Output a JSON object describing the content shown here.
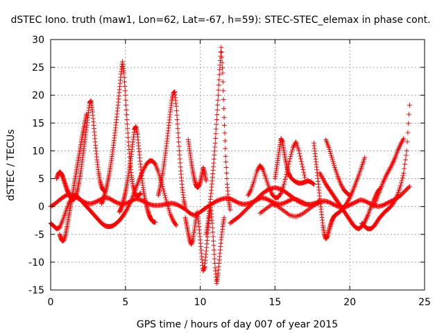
{
  "chart_data": {
    "type": "scatter",
    "title": "dSTEC Iono. truth (maw1, Lon=62, Lat=-67, h=59): STEC-STEC_elemax in phase cont.",
    "xlabel": "GPS time / hours of day 007 of year 2015",
    "ylabel": "dSTEC  / TECUs",
    "xlim": [
      0,
      25
    ],
    "ylim": [
      -15,
      30
    ],
    "x_ticks": [
      "0",
      "5",
      "10",
      "15",
      "20",
      "25"
    ],
    "y_ticks": [
      "-15",
      "-10",
      "-5",
      "0",
      "5",
      "10",
      "15",
      "20",
      "25",
      "30"
    ],
    "grid": true,
    "legend": "none",
    "marker": "plus",
    "color": "#ff0000",
    "series": [
      {
        "x": [
          0.0,
          0.3,
          0.6,
          0.9,
          1.2,
          1.5,
          1.8,
          2.1,
          2.4,
          2.7,
          3.0,
          3.3,
          3.6,
          3.9,
          4.2,
          4.5,
          4.8,
          5.1,
          5.4,
          5.7,
          6.0,
          6.3,
          6.6,
          6.9,
          7.2,
          7.5,
          7.8,
          8.1,
          8.4,
          8.7,
          9.0,
          9.3,
          9.6,
          9.9,
          10.2,
          10.5,
          10.8,
          11.1,
          11.4,
          11.7,
          12.0,
          12.3,
          12.6,
          12.9,
          13.2,
          13.5,
          13.8,
          14.1,
          14.4,
          14.7,
          15.0,
          15.3,
          15.6,
          15.9,
          16.2,
          16.5,
          16.8,
          17.1,
          17.4,
          17.7,
          18.0,
          18.3,
          18.6,
          18.9,
          19.2,
          19.5,
          19.8,
          20.1,
          20.4,
          20.7,
          21.0,
          21.3,
          21.6,
          21.9,
          22.2,
          22.5,
          22.8,
          23.1,
          23.4,
          23.7,
          24.0
        ],
        "y": [
          0.0,
          0.5,
          1.2,
          1.8,
          2.2,
          2.0,
          1.5,
          1.0,
          0.6,
          0.5,
          0.8,
          1.2,
          1.6,
          1.5,
          1.0,
          0.6,
          0.4,
          0.6,
          1.0,
          1.4,
          1.2,
          0.8,
          0.4,
          0.2,
          0.2,
          0.3,
          0.5,
          0.6,
          0.4,
          0.0,
          -0.5,
          -1.2,
          -1.6,
          -1.2,
          -0.6,
          0.0,
          0.5,
          1.0,
          1.3,
          1.5,
          1.4,
          1.0,
          0.6,
          0.4,
          0.5,
          0.8,
          1.2,
          1.6,
          1.4,
          1.0,
          0.6,
          0.4,
          0.6,
          1.0,
          1.4,
          1.2,
          0.8,
          0.4,
          0.2,
          0.4,
          0.8,
          1.0,
          0.8,
          0.4,
          0.0,
          -0.2,
          0.0,
          0.4,
          0.8,
          1.2,
          1.0,
          0.6,
          0.2,
          0.0,
          0.2,
          0.6,
          1.0,
          1.4,
          2.0,
          2.8,
          3.6
        ]
      },
      {
        "x": [
          0.0,
          0.2,
          0.4,
          0.6,
          0.8,
          1.0,
          1.2,
          1.4,
          1.6,
          1.8,
          2.0,
          2.2,
          2.4,
          2.6,
          2.8,
          3.0,
          3.2,
          3.4,
          3.6,
          3.8,
          4.0,
          4.2,
          4.4,
          4.6,
          4.8,
          5.0,
          5.2,
          5.4,
          5.6,
          5.8,
          6.0,
          6.2,
          6.4,
          6.6,
          6.8,
          7.0,
          7.2,
          7.4,
          7.6,
          7.8,
          8.0,
          8.2,
          8.4
        ],
        "y": [
          -3.0,
          -3.5,
          -4.0,
          -3.8,
          -2.5,
          -1.0,
          0.5,
          1.5,
          2.0,
          1.8,
          1.2,
          0.6,
          0.0,
          -0.6,
          -1.2,
          -1.8,
          -2.4,
          -3.0,
          -3.4,
          -3.6,
          -3.6,
          -3.4,
          -3.0,
          -2.5,
          -1.8,
          -1.0,
          0.0,
          1.2,
          2.6,
          4.0,
          5.4,
          6.6,
          7.6,
          8.2,
          8.2,
          7.6,
          6.2,
          4.4,
          2.4,
          0.4,
          -1.4,
          -2.6,
          -3.4
        ]
      },
      {
        "x": [
          0.4,
          0.5,
          0.6,
          0.7,
          0.8,
          0.9,
          1.0,
          1.1,
          1.2,
          1.3,
          1.4,
          1.5,
          1.6,
          1.7,
          1.8,
          1.9,
          2.0,
          2.1,
          2.2,
          2.3,
          2.4,
          2.5,
          2.6,
          2.7,
          2.8,
          2.9,
          3.0,
          3.1,
          3.2,
          3.3,
          3.4,
          3.5,
          3.6
        ],
        "y": [
          5.0,
          5.8,
          6.2,
          6.0,
          5.4,
          4.6,
          3.8,
          3.0,
          2.4,
          1.8,
          1.4,
          1.2,
          1.4,
          2.0,
          3.0,
          4.4,
          6.0,
          8.0,
          10.0,
          12.0,
          14.2,
          16.4,
          18.6,
          19.0,
          17.0,
          14.0,
          11.0,
          8.4,
          6.2,
          4.6,
          3.6,
          3.0,
          2.8
        ]
      },
      {
        "x": [
          0.6,
          0.7,
          0.8,
          0.9,
          1.0,
          1.1,
          1.2,
          1.3,
          1.4,
          1.5,
          1.6,
          1.7,
          1.8,
          1.9,
          2.0,
          2.1,
          2.2,
          2.3,
          2.4
        ],
        "y": [
          -5.0,
          -5.8,
          -6.2,
          -6.0,
          -5.0,
          -3.6,
          -2.0,
          -0.4,
          1.2,
          2.8,
          4.4,
          6.0,
          7.6,
          9.2,
          10.8,
          12.4,
          13.8,
          15.2,
          16.6
        ]
      },
      {
        "x": [
          3.4,
          3.5,
          3.6,
          3.7,
          3.8,
          3.9,
          4.0,
          4.1,
          4.2,
          4.3,
          4.4,
          4.5,
          4.6,
          4.7,
          4.8,
          4.9,
          5.0,
          5.1,
          5.2,
          5.3,
          5.4,
          5.5,
          5.6,
          5.7,
          5.8,
          5.9,
          6.0
        ],
        "y": [
          0.5,
          1.2,
          2.0,
          3.0,
          4.2,
          5.6,
          7.2,
          9.0,
          11.0,
          13.2,
          15.6,
          18.2,
          21.0,
          23.8,
          26.0,
          24.0,
          20.0,
          15.6,
          11.6,
          8.2,
          5.6,
          3.8,
          2.6,
          2.0,
          1.8,
          2.0,
          2.4
        ]
      },
      {
        "x": [
          4.6,
          4.7,
          4.8,
          4.9,
          5.0,
          5.1,
          5.2,
          5.3,
          5.4,
          5.5,
          5.6,
          5.7,
          5.8,
          5.9,
          6.0,
          6.1,
          6.2,
          6.3,
          6.4,
          6.5,
          6.6,
          6.7,
          6.8,
          6.9,
          7.0
        ],
        "y": [
          -1.0,
          -0.4,
          0.4,
          1.4,
          2.6,
          4.0,
          5.6,
          7.4,
          9.4,
          11.6,
          13.8,
          14.4,
          13.0,
          10.4,
          7.6,
          5.0,
          3.0,
          1.4,
          0.2,
          -0.8,
          -1.6,
          -2.2,
          -2.6,
          -2.8,
          -2.8
        ]
      },
      {
        "x": [
          7.2,
          7.3,
          7.4,
          7.5,
          7.6,
          7.7,
          7.8,
          7.9,
          8.0,
          8.1,
          8.2,
          8.3,
          8.4,
          8.5,
          8.6,
          8.7,
          8.8,
          8.9,
          9.0
        ],
        "y": [
          2.0,
          3.2,
          4.6,
          6.2,
          8.0,
          10.0,
          12.2,
          14.6,
          17.0,
          19.0,
          20.4,
          20.6,
          18.0,
          14.0,
          10.0,
          6.4,
          3.4,
          1.2,
          -0.2
        ]
      },
      {
        "x": [
          9.0,
          9.1,
          9.2,
          9.3,
          9.4,
          9.5,
          9.6,
          9.7,
          9.8,
          9.9,
          10.0,
          10.1,
          10.2,
          10.3,
          10.4,
          10.5,
          10.6,
          10.7,
          10.8,
          10.9,
          11.0,
          11.1,
          11.2,
          11.3,
          11.4,
          11.5,
          11.6
        ],
        "y": [
          -2.0,
          -3.4,
          -4.8,
          -6.0,
          -6.8,
          -6.0,
          -4.4,
          -2.6,
          -1.0,
          -3.0,
          -6.0,
          -9.0,
          -11.6,
          -10.8,
          -8.0,
          -4.8,
          -2.0,
          -0.2,
          -3.0,
          -7.0,
          -11.0,
          -13.8,
          -12.0,
          -9.0,
          -6.0,
          -3.6,
          -2.0
        ]
      },
      {
        "x": [
          10.4,
          10.5,
          10.6,
          10.7,
          10.8,
          10.9,
          11.0,
          11.1,
          11.2,
          11.3,
          11.4,
          11.5,
          11.6,
          11.7,
          11.8,
          11.9,
          12.0
        ],
        "y": [
          -5.0,
          -3.0,
          -0.8,
          1.8,
          4.6,
          7.8,
          11.4,
          15.6,
          20.0,
          24.6,
          28.6,
          24.0,
          16.0,
          9.0,
          4.0,
          1.0,
          -0.6
        ]
      },
      {
        "x": [
          9.2,
          9.3,
          9.4,
          9.5,
          9.6,
          9.7,
          9.8,
          9.9,
          10.0,
          10.1,
          10.2,
          10.3,
          10.4
        ],
        "y": [
          12.0,
          10.0,
          8.0,
          6.4,
          5.0,
          4.0,
          3.4,
          3.6,
          4.4,
          5.6,
          7.0,
          6.0,
          4.6
        ]
      },
      {
        "x": [
          12.0,
          12.3,
          12.6,
          12.9,
          13.2,
          13.5,
          13.8,
          14.1,
          14.4,
          14.7,
          15.0,
          15.3,
          15.6,
          15.9,
          16.2,
          16.5,
          16.8,
          17.1,
          17.4,
          17.7,
          18.0
        ],
        "y": [
          -3.0,
          -2.4,
          -1.8,
          -1.0,
          -0.2,
          0.6,
          1.4,
          2.2,
          2.8,
          3.2,
          3.4,
          3.2,
          2.8,
          2.2,
          1.6,
          1.0,
          0.6,
          0.4,
          0.4,
          0.6,
          1.0
        ]
      },
      {
        "x": [
          13.2,
          13.4,
          13.6,
          13.8,
          14.0,
          14.2,
          14.4,
          14.6,
          14.8,
          15.0,
          15.2,
          15.4,
          15.6,
          15.8,
          16.0,
          16.2,
          16.4,
          16.6,
          16.8,
          17.0
        ],
        "y": [
          2.0,
          3.0,
          4.6,
          6.4,
          7.4,
          6.6,
          5.0,
          3.4,
          2.2,
          1.6,
          1.6,
          2.4,
          4.0,
          6.2,
          8.6,
          10.6,
          11.6,
          10.0,
          7.6,
          5.2
        ]
      },
      {
        "x": [
          15.0,
          15.1,
          15.2,
          15.3,
          15.4,
          15.5,
          15.6,
          15.7,
          15.8,
          15.9,
          16.0,
          16.2,
          16.4,
          16.6,
          16.8,
          17.0,
          17.2,
          17.4,
          17.6
        ],
        "y": [
          5.0,
          6.8,
          8.6,
          10.4,
          12.2,
          11.6,
          10.0,
          8.4,
          7.0,
          6.0,
          5.4,
          4.8,
          4.4,
          4.2,
          4.2,
          4.4,
          4.6,
          4.4,
          4.0
        ]
      },
      {
        "x": [
          14.0,
          14.4,
          14.8,
          15.2,
          15.6,
          16.0,
          16.4,
          16.8,
          17.2,
          17.6,
          18.0
        ],
        "y": [
          -1.2,
          -0.4,
          0.4,
          0.0,
          -0.8,
          -1.6,
          -1.8,
          -1.4,
          -0.6,
          0.2,
          0.8
        ]
      },
      {
        "x": [
          17.6,
          17.7,
          17.8,
          17.9,
          18.0,
          18.1,
          18.2,
          18.3,
          18.4,
          18.5,
          18.6,
          18.7,
          18.8,
          18.9,
          19.0,
          19.2,
          19.4,
          19.6,
          19.8,
          20.0,
          20.2,
          20.4,
          20.6,
          20.8,
          21.0
        ],
        "y": [
          11.4,
          9.0,
          6.6,
          4.0,
          1.4,
          -1.0,
          -3.4,
          -5.0,
          -5.8,
          -5.4,
          -4.4,
          -3.4,
          -2.6,
          -2.0,
          -1.6,
          -1.2,
          -0.8,
          -0.2,
          0.6,
          1.6,
          2.8,
          4.2,
          5.6,
          7.2,
          8.8
        ]
      },
      {
        "x": [
          18.0,
          18.2,
          18.4,
          18.6,
          18.8,
          19.0,
          19.2,
          19.4,
          19.6,
          19.8,
          20.0,
          20.2,
          20.4,
          20.6,
          20.8,
          21.0,
          21.2,
          21.4,
          21.6,
          21.8,
          22.0
        ],
        "y": [
          6.0,
          5.0,
          4.0,
          3.2,
          2.4,
          1.6,
          0.8,
          0.0,
          -0.8,
          -1.6,
          -2.4,
          -3.2,
          -3.8,
          -4.0,
          -3.6,
          -2.8,
          -1.6,
          -0.2,
          1.2,
          2.4,
          3.2
        ]
      },
      {
        "x": [
          18.4,
          18.6,
          18.8,
          19.0,
          19.2,
          19.4,
          19.6,
          19.8,
          20.0
        ],
        "y": [
          12.0,
          10.6,
          8.8,
          7.0,
          5.4,
          4.0,
          3.0,
          2.4,
          2.0
        ]
      },
      {
        "x": [
          20.8,
          21.0,
          21.2,
          21.4,
          21.6,
          21.8,
          22.0,
          22.2,
          22.4,
          22.6,
          22.8,
          23.0,
          23.2,
          23.4,
          23.6,
          23.8,
          24.0
        ],
        "y": [
          -3.0,
          -3.6,
          -4.0,
          -4.0,
          -3.6,
          -2.8,
          -2.0,
          -1.4,
          -0.8,
          -0.4,
          0.2,
          1.0,
          2.2,
          3.8,
          6.0,
          10.0,
          18.2
        ]
      },
      {
        "x": [
          21.6,
          21.8,
          22.0,
          22.2,
          22.4,
          22.6,
          22.8,
          23.0,
          23.2,
          23.4,
          23.6
        ],
        "y": [
          0.0,
          1.4,
          2.8,
          4.2,
          5.4,
          6.4,
          7.4,
          8.6,
          10.0,
          11.2,
          12.2
        ]
      }
    ]
  }
}
